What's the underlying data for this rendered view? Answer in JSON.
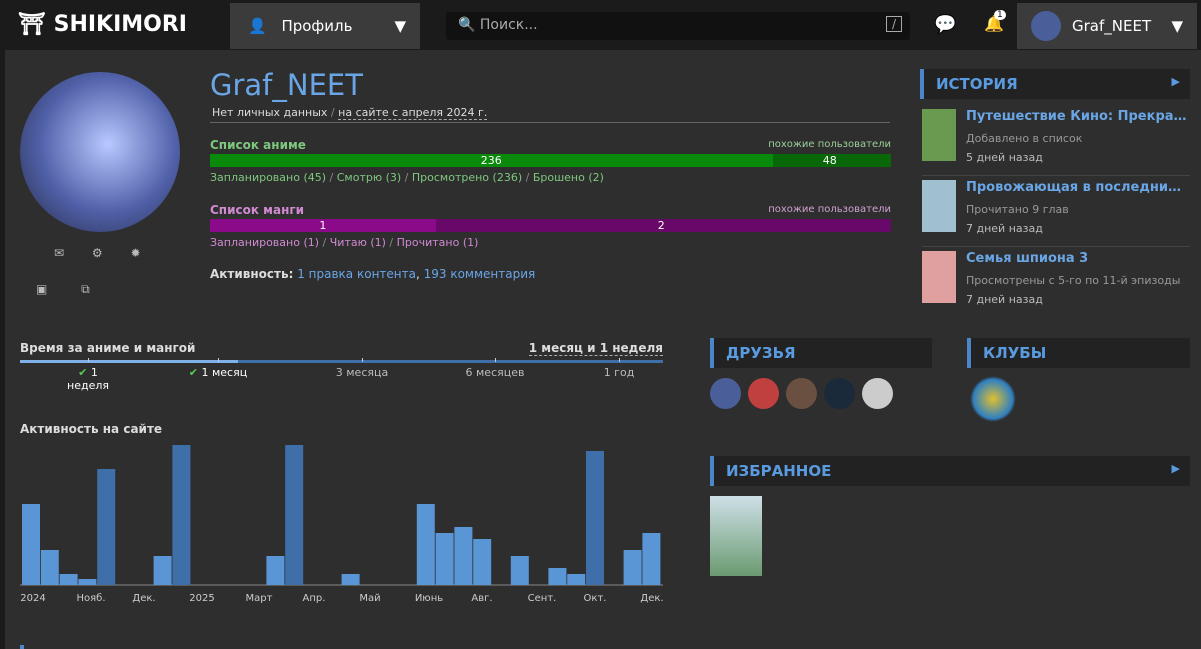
{
  "header": {
    "logo": "SHIKIMORI",
    "menu": "Профиль",
    "search_placeholder": "Поиск...",
    "search_key": "/",
    "notifications": "1",
    "user": "Graf_NEET"
  },
  "profile": {
    "name": "Graf_NEET",
    "info": "Нет личных данных",
    "since": "на сайте с апреля 2024 г.",
    "anime": {
      "title": "Список аниме",
      "similar": "похожие пользователи",
      "bars": [
        236,
        48
      ],
      "stats": [
        "Запланировано (45)",
        "Смотрю (3)",
        "Просмотрено (236)",
        "Брошено (2)"
      ]
    },
    "manga": {
      "title": "Список манги",
      "similar": "похожие пользователи",
      "bars": [
        1,
        2
      ],
      "stats": [
        "Запланировано (1)",
        "Читаю (1)",
        "Прочитано (1)"
      ]
    },
    "activity_label": "Активность:",
    "activity_links": [
      "1 правка контента",
      "193 комментария"
    ]
  },
  "time": {
    "title": "Время за аниме и мангой",
    "total": "1 месяц и 1 неделя",
    "marks": [
      "1 неделя",
      "1 месяц",
      "3 месяца",
      "6 месяцев",
      "1 год"
    ]
  },
  "activity": {
    "title": "Активность на сайте",
    "labels": [
      "2024",
      "Нояб.",
      "Дек.",
      "2025",
      "Март",
      "Апр.",
      "Май",
      "Июнь",
      "Авг.",
      "Сент.",
      "Окт.",
      "Дек."
    ],
    "values": [
      81,
      35,
      11,
      6,
      116,
      0,
      0,
      29,
      140,
      0,
      0,
      0,
      0,
      29,
      140,
      0,
      0,
      11,
      0,
      0,
      0,
      81,
      52,
      58,
      46,
      0,
      29,
      0,
      17,
      11,
      134,
      0,
      35,
      52
    ]
  },
  "history": {
    "title": "ИСТОРИЯ",
    "items": [
      {
        "title": "Путешествие Кино: Прекрасный мир",
        "action": "Добавлено в список",
        "time": "5 дней назад"
      },
      {
        "title": "Провожающая в последний путь Фрирен",
        "action": "Прочитано 9 глав",
        "time": "7 дней назад"
      },
      {
        "title": "Семья шпиона 3",
        "action": "Просмотрены с 5-го по 11-й эпизоды",
        "time": "7 дней назад"
      }
    ]
  },
  "friends": {
    "title": "ДРУЗЬЯ"
  },
  "clubs": {
    "title": "КЛУБЫ"
  },
  "favorites": {
    "title": "ИЗБРАННОЕ"
  }
}
